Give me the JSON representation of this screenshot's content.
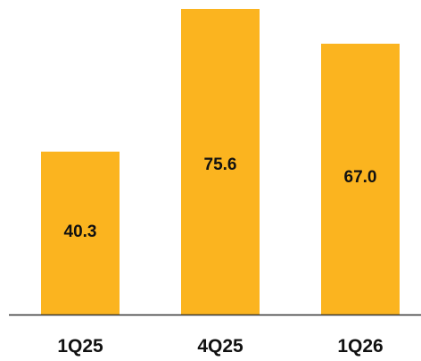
{
  "chart_data": {
    "type": "bar",
    "categories": [
      "1Q25",
      "4Q25",
      "1Q26"
    ],
    "values": [
      40.3,
      75.6,
      67.0
    ],
    "data_labels": [
      "40.3",
      "75.6",
      "67.0"
    ],
    "title": "",
    "xlabel": "",
    "ylabel": "",
    "ylim": [
      0,
      80
    ],
    "grid": false,
    "legend": "none",
    "bar_color": "#FBB41F",
    "axis_color": "#333333",
    "text_color": "#111111"
  }
}
